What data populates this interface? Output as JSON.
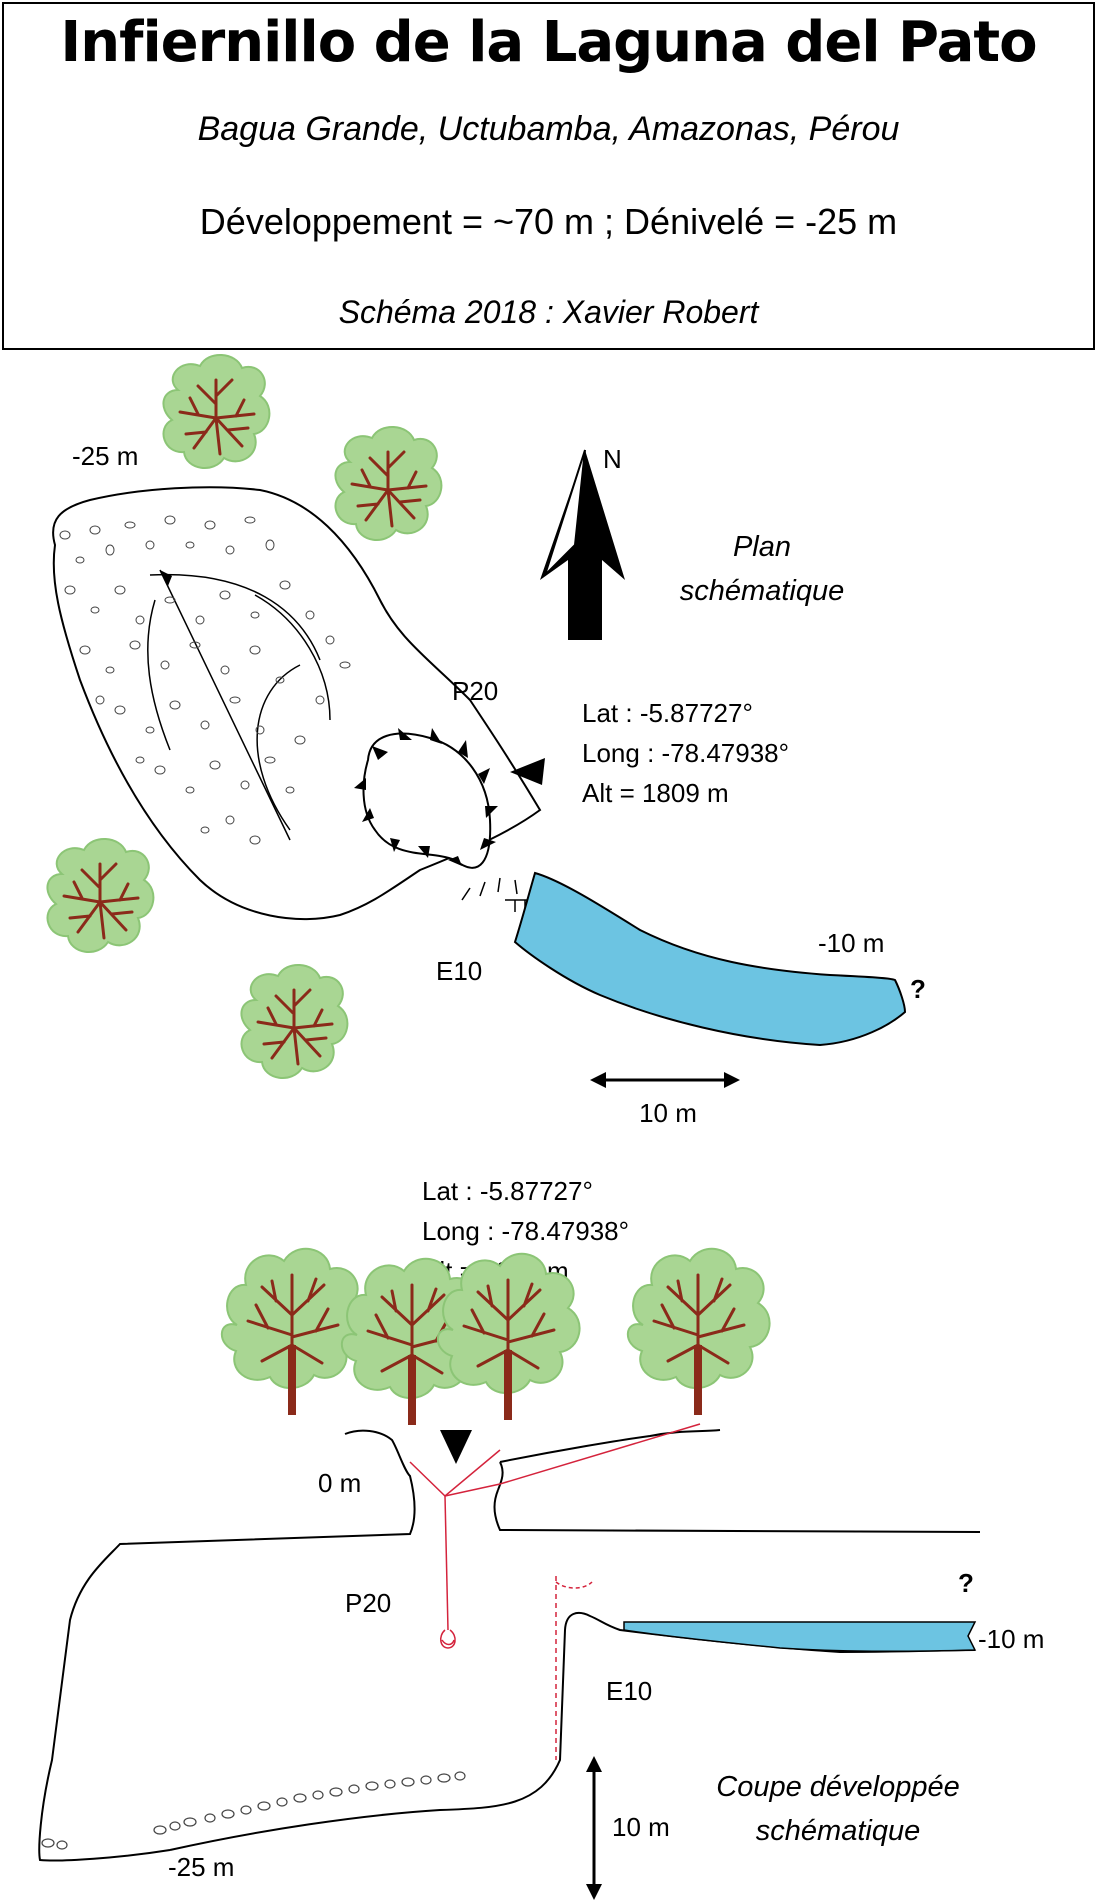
{
  "header": {
    "title": "Infiernillo de la Laguna del Pato",
    "subtitle": "Bagua Grande, Uctubamba, Amazonas, Pérou",
    "stats": "Développement = ~70 m ; Dénivelé = -25 m",
    "author": "Schéma 2018 : Xavier Robert"
  },
  "plan": {
    "title_line1": "Plan",
    "title_line2": "schématique",
    "north": "N",
    "depth_bottom": "-25 m",
    "depth_lake": "-10 m",
    "pit": "P20",
    "step": "E10",
    "question": "?",
    "scale": "10 m",
    "coords": {
      "lat": "Lat : -5.87727°",
      "long": "Long : -78.47938°",
      "alt": "Alt = 1809 m"
    }
  },
  "section": {
    "title_line1": "Coupe développée",
    "title_line2": "schématique",
    "depth_entrance": "0 m",
    "depth_bottom": "-25 m",
    "depth_lake": "-10 m",
    "pit": "P20",
    "step": "E10",
    "question": "?",
    "scale": "10 m",
    "coords": {
      "lat": "Lat : -5.87727°",
      "long": "Long : -78.47938°",
      "alt": "Alt = 1809 m"
    }
  },
  "colors": {
    "water": "#6cc4e2",
    "foliage": "#a9d693",
    "foliage_dark": "#8cc576",
    "trunk": "#8b2a1a",
    "rope": "#d4233c"
  }
}
